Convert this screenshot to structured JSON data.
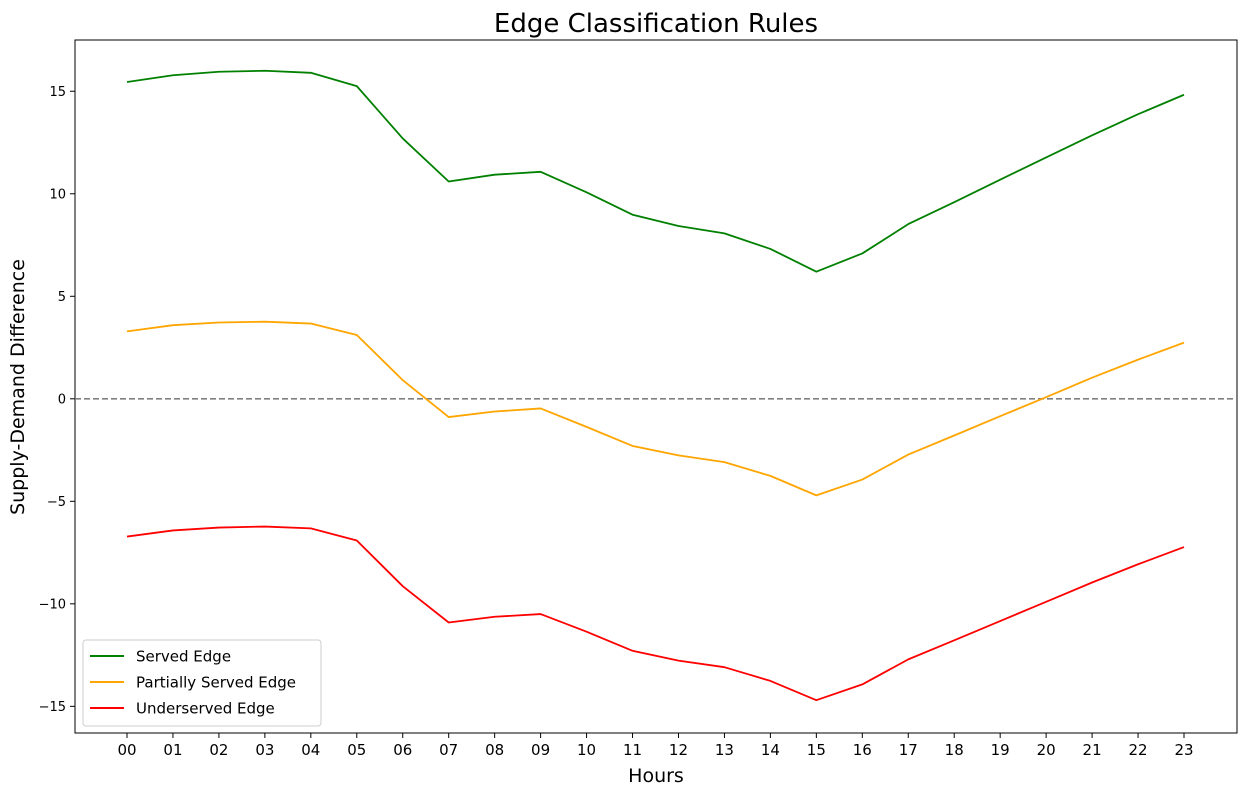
{
  "chart_data": {
    "type": "line",
    "title": "Edge Classification Rules",
    "xlabel": "Hours",
    "ylabel": "Supply-Demand Difference",
    "categories": [
      "00",
      "01",
      "02",
      "03",
      "04",
      "05",
      "06",
      "07",
      "08",
      "09",
      "10",
      "11",
      "12",
      "13",
      "14",
      "15",
      "16",
      "17",
      "18",
      "19",
      "20",
      "21",
      "22",
      "23"
    ],
    "ylim": [
      -16.3,
      17.5
    ],
    "yticks": [
      15,
      10,
      5,
      0,
      -5,
      -10,
      -15
    ],
    "ytick_labels": [
      "15",
      "10",
      "5",
      "0",
      "−5",
      "−10",
      "−15"
    ],
    "reference_line": {
      "y": 0,
      "style": "dashed",
      "color": "#808080"
    },
    "grid": false,
    "legend_position": "lower-left",
    "series": [
      {
        "name": "Served Edge",
        "color": "#008000",
        "values": [
          15.45,
          15.78,
          15.95,
          16.0,
          15.9,
          15.25,
          12.7,
          10.6,
          10.93,
          11.07,
          10.07,
          8.98,
          8.43,
          8.07,
          7.31,
          6.2,
          7.09,
          8.52,
          9.59,
          10.69,
          11.77,
          12.85,
          13.88,
          14.83
        ]
      },
      {
        "name": "Partially Served Edge",
        "color": "#FFA500",
        "values": [
          3.29,
          3.59,
          3.72,
          3.76,
          3.67,
          3.11,
          0.91,
          -0.89,
          -0.62,
          -0.47,
          -1.37,
          -2.3,
          -2.76,
          -3.09,
          -3.76,
          -4.71,
          -3.94,
          -2.72,
          -1.79,
          -0.85,
          0.08,
          1.03,
          1.91,
          2.74
        ]
      },
      {
        "name": "Underserved Edge",
        "color": "#FF0000",
        "values": [
          -6.72,
          -6.42,
          -6.28,
          -6.23,
          -6.32,
          -6.91,
          -9.14,
          -10.91,
          -10.63,
          -10.5,
          -11.36,
          -12.29,
          -12.77,
          -13.09,
          -13.76,
          -14.7,
          -13.93,
          -12.71,
          -11.78,
          -10.84,
          -9.9,
          -8.96,
          -8.07,
          -7.23
        ]
      }
    ]
  }
}
